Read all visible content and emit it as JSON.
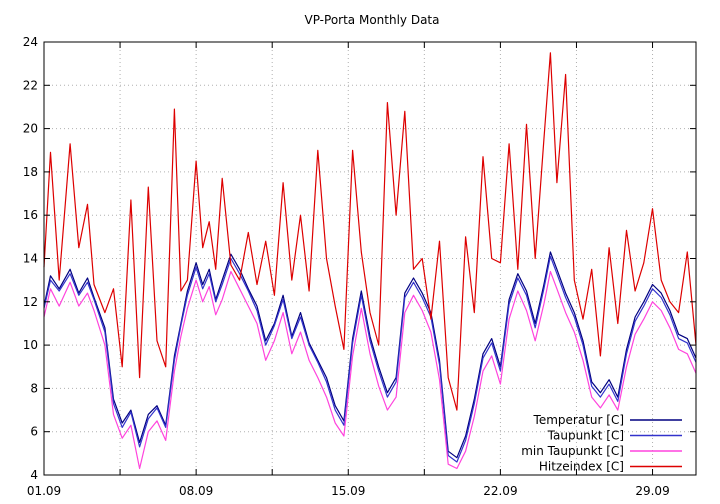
{
  "chart_data": {
    "type": "line",
    "title": "VP-Porta Monthly Data",
    "xlabel": "",
    "ylabel": "",
    "xlim": [
      1,
      31
    ],
    "ylim": [
      4,
      24
    ],
    "grid": true,
    "legend_position": "bottom-right",
    "y_ticks": [
      "4",
      "6",
      "8",
      "10",
      "12",
      "14",
      "16",
      "18",
      "20",
      "22",
      "24"
    ],
    "x_ticks": [
      {
        "label": "01.09",
        "day": 1
      },
      {
        "label": "08.09",
        "day": 8
      },
      {
        "label": "15.09",
        "day": 15
      },
      {
        "label": "22.09",
        "day": 22
      },
      {
        "label": "29.09",
        "day": 29
      }
    ],
    "day_grid": [
      1,
      4.5,
      8,
      11.5,
      15,
      18.5,
      22,
      25.5,
      29
    ],
    "series": [
      {
        "name": "Temperatur [C]",
        "color": "#000080",
        "x": [
          1,
          1.3,
          1.7,
          2.2,
          2.6,
          3.0,
          3.3,
          3.8,
          4.2,
          4.6,
          5.0,
          5.4,
          5.8,
          6.2,
          6.6,
          7.0,
          7.3,
          7.6,
          8.0,
          8.3,
          8.6,
          8.9,
          9.2,
          9.6,
          10.0,
          10.4,
          10.8,
          11.2,
          11.6,
          12.0,
          12.4,
          12.8,
          13.2,
          13.6,
          14.0,
          14.4,
          14.8,
          15.2,
          15.6,
          16.0,
          16.4,
          16.8,
          17.2,
          17.6,
          18.0,
          18.4,
          18.8,
          19.2,
          19.6,
          20.0,
          20.4,
          20.8,
          21.2,
          21.6,
          22.0,
          22.4,
          22.8,
          23.2,
          23.6,
          24.0,
          24.3,
          24.6,
          25.0,
          25.4,
          25.8,
          26.2,
          26.6,
          27.0,
          27.4,
          27.8,
          28.2,
          28.6,
          29.0,
          29.4,
          29.8,
          30.2,
          30.6,
          31.0
        ],
        "values": [
          11.8,
          13.2,
          12.6,
          13.5,
          12.4,
          13.1,
          12.2,
          10.8,
          7.5,
          6.4,
          7.0,
          5.5,
          6.8,
          7.2,
          6.3,
          9.5,
          11.0,
          12.5,
          13.8,
          12.8,
          13.5,
          12.1,
          13.0,
          14.2,
          13.5,
          12.6,
          11.8,
          10.2,
          11.0,
          12.3,
          10.4,
          11.5,
          10.1,
          9.3,
          8.5,
          7.2,
          6.5,
          10.3,
          12.5,
          10.4,
          9.0,
          7.8,
          8.5,
          12.4,
          13.1,
          12.4,
          11.5,
          9.3,
          5.1,
          4.8,
          5.8,
          7.5,
          9.6,
          10.3,
          9.0,
          12.1,
          13.3,
          12.5,
          11.0,
          12.8,
          14.3,
          13.5,
          12.4,
          11.5,
          10.2,
          8.3,
          7.8,
          8.4,
          7.6,
          9.8,
          11.3,
          12.0,
          12.8,
          12.4,
          11.6,
          10.5,
          10.3,
          9.4
        ]
      },
      {
        "name": "Taupunkt [C]",
        "color": "#3333cc",
        "x": [
          1,
          1.3,
          1.7,
          2.2,
          2.6,
          3.0,
          3.3,
          3.8,
          4.2,
          4.6,
          5.0,
          5.4,
          5.8,
          6.2,
          6.6,
          7.0,
          7.3,
          7.6,
          8.0,
          8.3,
          8.6,
          8.9,
          9.2,
          9.6,
          10.0,
          10.4,
          10.8,
          11.2,
          11.6,
          12.0,
          12.4,
          12.8,
          13.2,
          13.6,
          14.0,
          14.4,
          14.8,
          15.2,
          15.6,
          16.0,
          16.4,
          16.8,
          17.2,
          17.6,
          18.0,
          18.4,
          18.8,
          19.2,
          19.6,
          20.0,
          20.4,
          20.8,
          21.2,
          21.6,
          22.0,
          22.4,
          22.8,
          23.2,
          23.6,
          24.0,
          24.3,
          24.6,
          25.0,
          25.4,
          25.8,
          26.2,
          26.6,
          27.0,
          27.4,
          27.8,
          28.2,
          28.6,
          29.0,
          29.4,
          29.8,
          30.2,
          30.6,
          31.0
        ],
        "values": [
          11.7,
          13.0,
          12.5,
          13.3,
          12.3,
          12.9,
          12.1,
          10.6,
          7.3,
          6.2,
          6.9,
          5.3,
          6.6,
          7.1,
          6.2,
          9.3,
          10.9,
          12.3,
          13.6,
          12.6,
          13.3,
          12.0,
          12.8,
          14.0,
          13.3,
          12.5,
          11.6,
          10.0,
          10.9,
          12.1,
          10.3,
          11.3,
          10.0,
          9.2,
          8.3,
          7.0,
          6.3,
          10.1,
          12.3,
          10.2,
          8.8,
          7.6,
          8.3,
          12.2,
          12.9,
          12.2,
          11.3,
          9.1,
          4.9,
          4.6,
          5.6,
          7.3,
          9.4,
          10.1,
          8.8,
          11.9,
          13.1,
          12.3,
          10.8,
          12.6,
          14.1,
          13.3,
          12.2,
          11.3,
          10.0,
          8.1,
          7.6,
          8.2,
          7.4,
          9.6,
          11.1,
          11.8,
          12.6,
          12.2,
          11.4,
          10.3,
          10.1,
          9.2
        ]
      },
      {
        "name": "min Taupunkt [C]",
        "color": "#ff44dd",
        "x": [
          1,
          1.3,
          1.7,
          2.2,
          2.6,
          3.0,
          3.3,
          3.8,
          4.2,
          4.6,
          5.0,
          5.4,
          5.8,
          6.2,
          6.6,
          7.0,
          7.3,
          7.6,
          8.0,
          8.3,
          8.6,
          8.9,
          9.2,
          9.6,
          10.0,
          10.4,
          10.8,
          11.2,
          11.6,
          12.0,
          12.4,
          12.8,
          13.2,
          13.6,
          14.0,
          14.4,
          14.8,
          15.2,
          15.6,
          16.0,
          16.4,
          16.8,
          17.2,
          17.6,
          18.0,
          18.4,
          18.8,
          19.2,
          19.6,
          20.0,
          20.4,
          20.8,
          21.2,
          21.6,
          22.0,
          22.4,
          22.8,
          23.2,
          23.6,
          24.0,
          24.3,
          24.6,
          25.0,
          25.4,
          25.8,
          26.2,
          26.6,
          27.0,
          27.4,
          27.8,
          28.2,
          28.6,
          29.0,
          29.4,
          29.8,
          30.2,
          30.6,
          31.0
        ],
        "values": [
          11.3,
          12.6,
          11.8,
          12.9,
          11.8,
          12.4,
          11.6,
          10.0,
          6.8,
          5.7,
          6.3,
          4.3,
          6.0,
          6.5,
          5.6,
          8.8,
          10.4,
          11.7,
          13.0,
          12.0,
          12.7,
          11.4,
          12.1,
          13.4,
          12.6,
          11.8,
          11.0,
          9.3,
          10.2,
          11.5,
          9.6,
          10.6,
          9.3,
          8.5,
          7.6,
          6.4,
          5.8,
          9.5,
          11.7,
          9.6,
          8.1,
          7.0,
          7.6,
          11.5,
          12.3,
          11.6,
          10.6,
          8.4,
          4.5,
          4.3,
          5.1,
          6.7,
          8.8,
          9.5,
          8.2,
          11.2,
          12.5,
          11.6,
          10.2,
          11.9,
          13.4,
          12.6,
          11.5,
          10.6,
          9.3,
          7.6,
          7.1,
          7.7,
          7.0,
          9.0,
          10.5,
          11.2,
          12.0,
          11.6,
          10.8,
          9.8,
          9.6,
          8.7
        ]
      },
      {
        "name": "Hitzeindex [C]",
        "color": "#dd0000",
        "x": [
          1,
          1.3,
          1.7,
          2.2,
          2.6,
          3.0,
          3.3,
          3.8,
          4.2,
          4.6,
          5.0,
          5.4,
          5.8,
          6.2,
          6.6,
          7.0,
          7.3,
          7.6,
          8.0,
          8.3,
          8.6,
          8.9,
          9.2,
          9.6,
          10.0,
          10.4,
          10.8,
          11.2,
          11.6,
          12.0,
          12.4,
          12.8,
          13.2,
          13.6,
          14.0,
          14.4,
          14.8,
          15.2,
          15.6,
          16.0,
          16.4,
          16.8,
          17.2,
          17.6,
          18.0,
          18.4,
          18.8,
          19.2,
          19.6,
          20.0,
          20.4,
          20.8,
          21.2,
          21.6,
          22.0,
          22.4,
          22.8,
          23.2,
          23.6,
          24.0,
          24.3,
          24.6,
          25.0,
          25.4,
          25.8,
          26.2,
          26.6,
          27.0,
          27.4,
          27.8,
          28.2,
          28.6,
          29.0,
          29.4,
          29.8,
          30.2,
          30.6,
          31.0
        ],
        "values": [
          13.6,
          18.9,
          13.0,
          19.3,
          14.5,
          16.5,
          12.8,
          11.5,
          12.6,
          9.0,
          16.7,
          8.5,
          17.3,
          10.2,
          9.0,
          20.9,
          12.5,
          13.0,
          18.5,
          14.5,
          15.7,
          13.5,
          17.7,
          13.7,
          13.0,
          15.2,
          12.8,
          14.8,
          12.3,
          17.5,
          13.0,
          16.0,
          12.5,
          19.0,
          14.0,
          11.8,
          9.8,
          19.0,
          14.3,
          11.5,
          10.0,
          21.2,
          16.0,
          20.8,
          13.5,
          14.0,
          11.2,
          14.8,
          8.5,
          7.0,
          15.0,
          11.5,
          18.7,
          14.0,
          13.8,
          19.3,
          13.5,
          20.2,
          14.0,
          19.5,
          23.5,
          17.5,
          22.5,
          13.0,
          11.2,
          13.5,
          9.5,
          14.5,
          11.0,
          15.3,
          12.5,
          13.8,
          16.3,
          13.0,
          12.0,
          11.5,
          14.3,
          10.0
        ]
      }
    ]
  }
}
